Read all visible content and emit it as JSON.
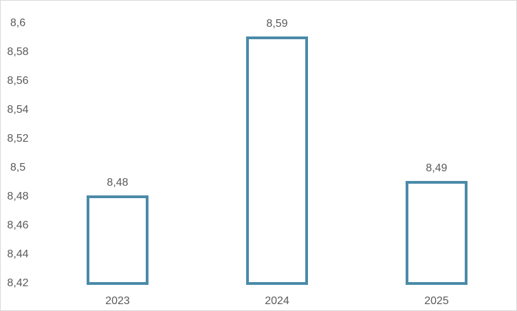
{
  "chart_data": {
    "type": "bar",
    "categories": [
      "2023",
      "2024",
      "2025"
    ],
    "values": [
      8.48,
      8.59,
      8.49
    ],
    "value_labels": [
      "8,48",
      "8,59",
      "8,49"
    ],
    "color": "#4a8aa8",
    "ylim": [
      8.42,
      8.6
    ],
    "yticks": [
      {
        "value": 8.42,
        "label": "8,42"
      },
      {
        "value": 8.44,
        "label": "8,44"
      },
      {
        "value": 8.46,
        "label": "8,46"
      },
      {
        "value": 8.48,
        "label": "8,48"
      },
      {
        "value": 8.5,
        "label": "8,5"
      },
      {
        "value": 8.52,
        "label": "8,52"
      },
      {
        "value": 8.54,
        "label": "8,54"
      },
      {
        "value": 8.56,
        "label": "8,56"
      },
      {
        "value": 8.58,
        "label": "8,58"
      },
      {
        "value": 8.6,
        "label": "8,6"
      }
    ],
    "grid": false
  }
}
